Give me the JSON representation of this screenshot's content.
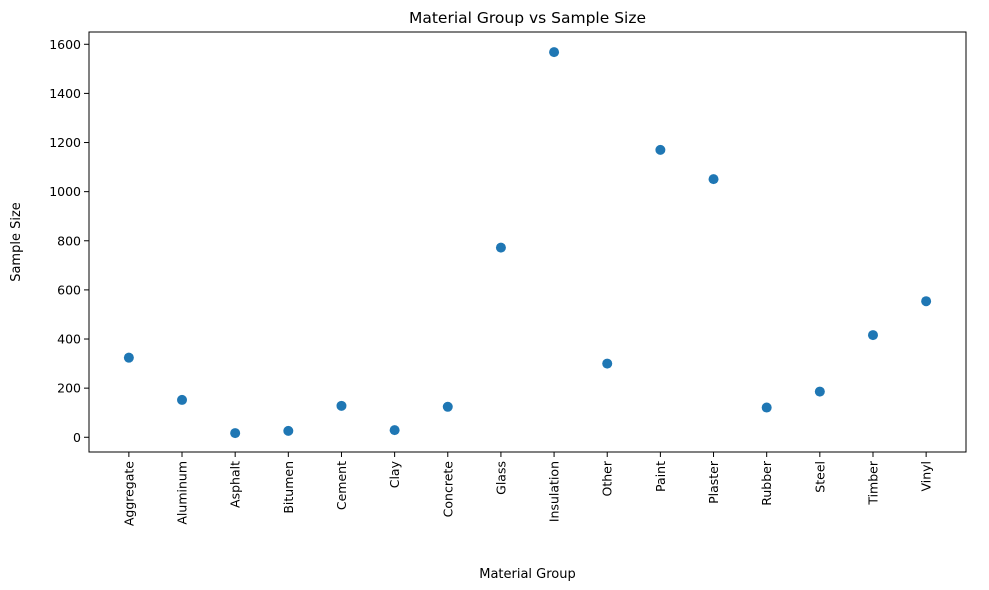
{
  "chart_data": {
    "type": "scatter",
    "title": "Material Group vs Sample Size",
    "xlabel": "Material Group",
    "ylabel": "Sample Size",
    "categories": [
      "Aggregate",
      "Aluminum",
      "Asphalt",
      "Bitumen",
      "Cement",
      "Clay",
      "Concrete",
      "Glass",
      "Insulation",
      "Other",
      "Paint",
      "Plaster",
      "Rubber",
      "Steel",
      "Timber",
      "Vinyl"
    ],
    "values": [
      324,
      152,
      17,
      26,
      128,
      29,
      124,
      772,
      1568,
      300,
      1170,
      1051,
      121,
      186,
      416,
      554
    ],
    "ylim": [
      -60,
      1650
    ],
    "yticks": [
      0,
      200,
      400,
      600,
      800,
      1000,
      1200,
      1400,
      1600
    ],
    "marker_color": "#1f77b4",
    "grid": false,
    "legend": "none"
  }
}
